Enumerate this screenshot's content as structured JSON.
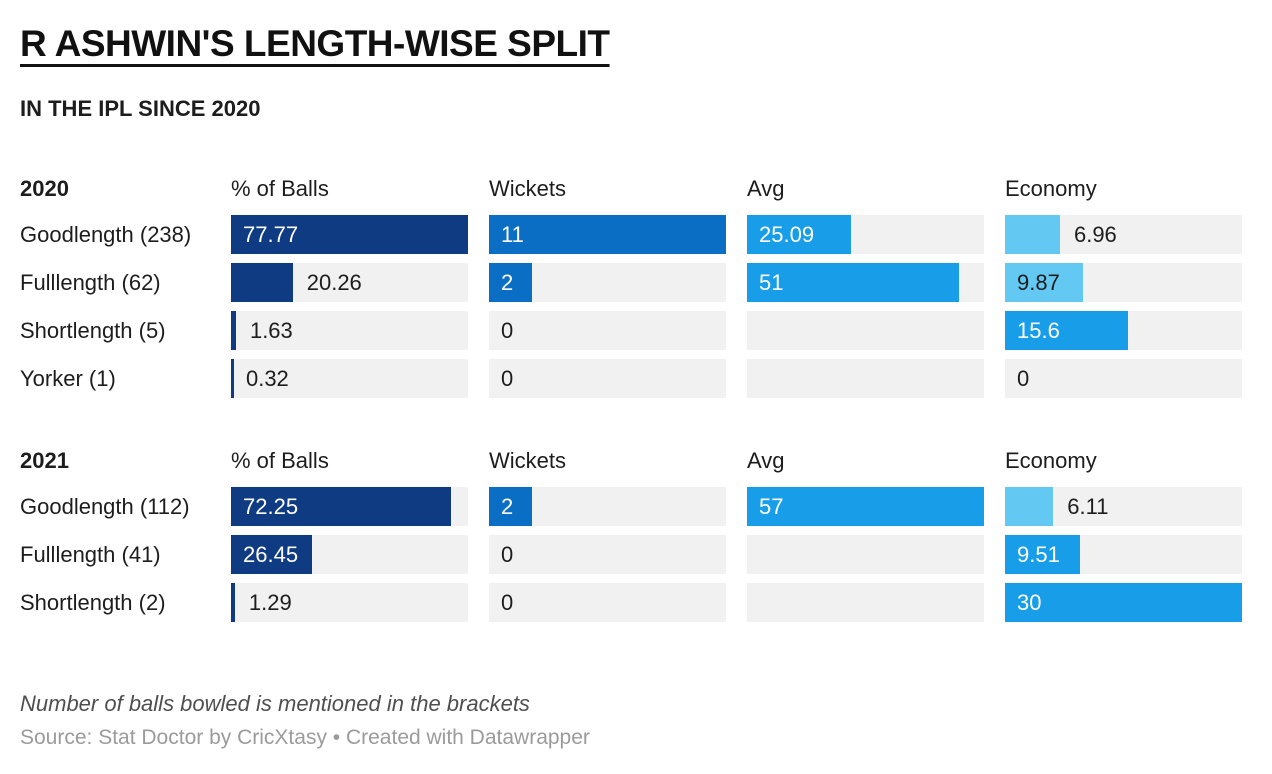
{
  "page": {
    "title": "R ASHWIN'S LENGTH-WISE SPLIT",
    "subtitle": "IN THE IPL SINCE 2020",
    "footnote": "Number of balls bowled is mentioned in the brackets",
    "source": "Source: Stat Doctor by CricXtasy • Created with Datawrapper"
  },
  "palette": {
    "navy": "#0f3b82",
    "blue": "#0b6ec5",
    "bright_blue": "#189de9",
    "sky_blue": "#63c8f2",
    "track": "#f1f1f1",
    "text_dark": "#1d1d1d",
    "text_light": "#ffffff"
  },
  "chart_data": {
    "type": "table",
    "title": "R ASHWIN'S LENGTH-WISE SPLIT",
    "subtitle": "IN THE IPL SINCE 2020",
    "columns": [
      "% of Balls",
      "Wickets",
      "Avg",
      "Economy"
    ],
    "column_max": {
      "% of Balls": 77.77,
      "Wickets": 11,
      "Avg": 57,
      "Economy": 30
    },
    "tables": [
      {
        "year": "2020",
        "columns": [
          "% of Balls",
          "Wickets",
          "Avg",
          "Economy"
        ],
        "rows": [
          {
            "label": "Goodlength (238)",
            "cells": [
              {
                "col": "% of Balls",
                "value": 77.77,
                "display": "77.77",
                "color": "navy"
              },
              {
                "col": "Wickets",
                "value": 11,
                "display": "11",
                "color": "blue"
              },
              {
                "col": "Avg",
                "value": 25.09,
                "display": "25.09",
                "color": "bright_blue"
              },
              {
                "col": "Economy",
                "value": 6.96,
                "display": "6.96",
                "color": "sky_blue"
              }
            ]
          },
          {
            "label": "Fulllength (62)",
            "cells": [
              {
                "col": "% of Balls",
                "value": 20.26,
                "display": "20.26",
                "color": "navy"
              },
              {
                "col": "Wickets",
                "value": 2,
                "display": "2",
                "color": "blue"
              },
              {
                "col": "Avg",
                "value": 51,
                "display": "51",
                "color": "bright_blue"
              },
              {
                "col": "Economy",
                "value": 9.87,
                "display": "9.87",
                "color": "sky_blue"
              }
            ]
          },
          {
            "label": "Shortlength (5)",
            "cells": [
              {
                "col": "% of Balls",
                "value": 1.63,
                "display": "1.63",
                "color": "navy"
              },
              {
                "col": "Wickets",
                "value": 0,
                "display": "0",
                "color": "blue"
              },
              {
                "col": "Avg",
                "value": null,
                "display": "",
                "color": null
              },
              {
                "col": "Economy",
                "value": 15.6,
                "display": "15.6",
                "color": "bright_blue"
              }
            ]
          },
          {
            "label": "Yorker (1)",
            "cells": [
              {
                "col": "% of Balls",
                "value": 0.32,
                "display": "0.32",
                "color": "navy"
              },
              {
                "col": "Wickets",
                "value": 0,
                "display": "0",
                "color": "blue"
              },
              {
                "col": "Avg",
                "value": null,
                "display": "",
                "color": null
              },
              {
                "col": "Economy",
                "value": 0,
                "display": "0",
                "color": "bright_blue"
              }
            ]
          }
        ]
      },
      {
        "year": "2021",
        "columns": [
          "% of Balls",
          "Wickets",
          "Avg",
          "Economy"
        ],
        "rows": [
          {
            "label": "Goodlength (112)",
            "cells": [
              {
                "col": "% of Balls",
                "value": 72.25,
                "display": "72.25",
                "color": "navy"
              },
              {
                "col": "Wickets",
                "value": 2,
                "display": "2",
                "color": "blue"
              },
              {
                "col": "Avg",
                "value": 57,
                "display": "57",
                "color": "bright_blue"
              },
              {
                "col": "Economy",
                "value": 6.11,
                "display": "6.11",
                "color": "sky_blue"
              }
            ]
          },
          {
            "label": "Fulllength (41)",
            "cells": [
              {
                "col": "% of Balls",
                "value": 26.45,
                "display": "26.45",
                "color": "navy"
              },
              {
                "col": "Wickets",
                "value": 0,
                "display": "0",
                "color": "blue"
              },
              {
                "col": "Avg",
                "value": null,
                "display": "",
                "color": null
              },
              {
                "col": "Economy",
                "value": 9.51,
                "display": "9.51",
                "color": "bright_blue"
              }
            ]
          },
          {
            "label": "Shortlength (2)",
            "cells": [
              {
                "col": "% of Balls",
                "value": 1.29,
                "display": "1.29",
                "color": "navy"
              },
              {
                "col": "Wickets",
                "value": 0,
                "display": "0",
                "color": "blue"
              },
              {
                "col": "Avg",
                "value": null,
                "display": "",
                "color": null
              },
              {
                "col": "Economy",
                "value": 30,
                "display": "30",
                "color": "bright_blue"
              }
            ]
          }
        ]
      }
    ]
  }
}
